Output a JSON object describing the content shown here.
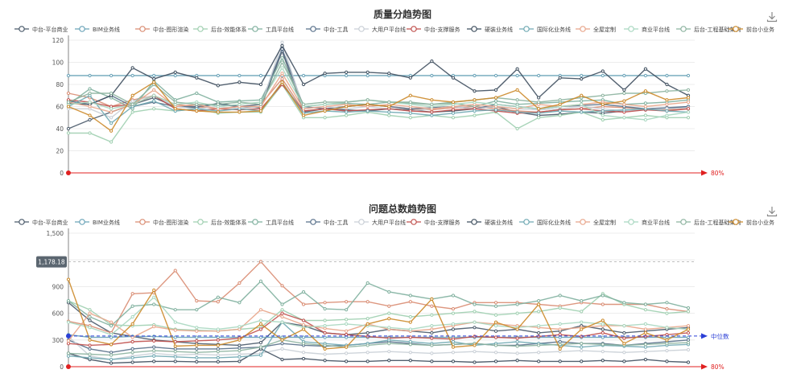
{
  "series_names": [
    "中台-平台商业",
    "BIM业务线",
    "中台-图形渲染",
    "后台-效能体系",
    "工具平台线",
    "中台-工具",
    "大用户平台线",
    "中台-支撑服务",
    "硬装业务线",
    "国际化业务线",
    "全屋定制",
    "商业平台线",
    "后台-工程基础架构",
    "前台小业务"
  ],
  "series_colors": [
    "#4a5a6a",
    "#6aa3b8",
    "#d98c72",
    "#9fcfb0",
    "#7fb09e",
    "#58708a",
    "#c9cfd6",
    "#c0504d",
    "#3f4f5f",
    "#6fa9b3",
    "#e8a58a",
    "#a8d7c0",
    "#8cb39f",
    "#cc8a2a"
  ],
  "icons": {
    "download": "download-icon"
  },
  "chart_data": [
    {
      "type": "line",
      "title": "质量分趋势图",
      "ylim": [
        0,
        120
      ],
      "yticks": [
        "0",
        "20",
        "40",
        "60",
        "80",
        "100",
        "120"
      ],
      "threshold_label": "80%",
      "x_count": 30,
      "series": [
        {
          "name": "中台-平台商业",
          "values": [
            40,
            48,
            55,
            62,
            68,
            60,
            59,
            63,
            60,
            59,
            110,
            55,
            58,
            57,
            56,
            58,
            57,
            55,
            56,
            58,
            60,
            55,
            52,
            53,
            55,
            54,
            56,
            57,
            58,
            60
          ]
        },
        {
          "name": "BIM业务线",
          "values": [
            88,
            88,
            88,
            88,
            88,
            88,
            88,
            88,
            88,
            88,
            88,
            88,
            88,
            88,
            88,
            88,
            88,
            88,
            88,
            88,
            88,
            88,
            88,
            88,
            88,
            88,
            88,
            88,
            88,
            88
          ]
        },
        {
          "name": "中台-图形渲染",
          "values": [
            72,
            68,
            60,
            66,
            70,
            62,
            60,
            58,
            60,
            62,
            85,
            56,
            58,
            60,
            62,
            60,
            58,
            57,
            59,
            60,
            58,
            56,
            55,
            57,
            58,
            60,
            59,
            58,
            57,
            58
          ]
        },
        {
          "name": "后台-效能体系",
          "values": [
            36,
            36,
            28,
            55,
            58,
            56,
            58,
            54,
            55,
            55,
            80,
            50,
            50,
            52,
            55,
            52,
            50,
            52,
            50,
            52,
            55,
            40,
            50,
            52,
            55,
            48,
            50,
            52,
            50,
            50
          ]
        },
        {
          "name": "工具平台线",
          "values": [
            62,
            76,
            68,
            58,
            83,
            66,
            72,
            64,
            65,
            66,
            104,
            60,
            62,
            63,
            62,
            64,
            63,
            62,
            63,
            60,
            65,
            62,
            63,
            64,
            65,
            66,
            62,
            63,
            64,
            66
          ]
        },
        {
          "name": "中台-工具",
          "values": [
            65,
            62,
            70,
            60,
            64,
            60,
            60,
            62,
            60,
            62,
            112,
            60,
            58,
            60,
            62,
            60,
            58,
            59,
            60,
            58,
            62,
            60,
            58,
            60,
            61,
            62,
            60,
            58,
            59,
            60
          ]
        },
        {
          "name": "大用户平台线",
          "values": [
            58,
            58,
            50,
            65,
            70,
            60,
            58,
            60,
            58,
            60,
            118,
            58,
            60,
            58,
            60,
            58,
            56,
            58,
            60,
            58,
            60,
            58,
            57,
            58,
            60,
            58,
            56,
            57,
            58,
            59
          ]
        },
        {
          "name": "中台-支撑服务",
          "values": [
            66,
            64,
            60,
            62,
            70,
            58,
            56,
            58,
            57,
            58,
            80,
            56,
            58,
            56,
            57,
            58,
            56,
            55,
            57,
            58,
            56,
            54,
            55,
            57,
            58,
            56,
            55,
            57,
            56,
            58
          ]
        },
        {
          "name": "硬装业务线",
          "values": [
            63,
            62,
            70,
            95,
            85,
            91,
            86,
            79,
            82,
            80,
            115,
            80,
            90,
            91,
            91,
            90,
            86,
            101,
            86,
            74,
            75,
            94,
            68,
            86,
            85,
            92,
            75,
            94,
            80,
            70
          ]
        },
        {
          "name": "国际化业务线",
          "values": [
            60,
            70,
            45,
            60,
            65,
            56,
            58,
            56,
            58,
            56,
            82,
            54,
            56,
            55,
            56,
            55,
            54,
            52,
            54,
            56,
            57,
            55,
            54,
            56,
            55,
            56,
            57,
            58,
            56,
            55
          ]
        },
        {
          "name": "全屋定制",
          "values": [
            64,
            60,
            55,
            62,
            75,
            60,
            62,
            58,
            60,
            60,
            90,
            58,
            60,
            62,
            60,
            62,
            60,
            58,
            60,
            62,
            60,
            58,
            62,
            60,
            62,
            64,
            62,
            60,
            62,
            64
          ]
        },
        {
          "name": "商业平台线",
          "values": [
            62,
            64,
            58,
            62,
            70,
            62,
            64,
            60,
            62,
            64,
            95,
            60,
            62,
            64,
            66,
            64,
            62,
            60,
            62,
            64,
            62,
            60,
            58,
            60,
            62,
            52,
            50,
            48,
            52,
            55
          ]
        },
        {
          "name": "后台-工程基础架构",
          "values": [
            64,
            72,
            72,
            62,
            80,
            64,
            62,
            62,
            64,
            62,
            100,
            62,
            64,
            64,
            66,
            64,
            64,
            62,
            64,
            66,
            68,
            66,
            64,
            66,
            68,
            70,
            72,
            72,
            74,
            75
          ]
        },
        {
          "name": "前台小业务",
          "values": [
            60,
            52,
            38,
            70,
            82,
            58,
            56,
            55,
            55,
            56,
            82,
            52,
            56,
            60,
            62,
            60,
            70,
            66,
            64,
            66,
            68,
            75,
            58,
            62,
            70,
            62,
            65,
            74,
            66,
            68
          ]
        }
      ]
    },
    {
      "type": "line",
      "title": "问题总数趋势图",
      "ylim": [
        0,
        1500
      ],
      "yticks": [
        "0",
        "300",
        "600",
        "900",
        "1,200",
        "1,500"
      ],
      "max_marker_label": "1,178.18",
      "max_marker_value": 1178.18,
      "median_label": "中位数",
      "median_value": 345,
      "threshold_label": "80%",
      "x_count": 30,
      "series": [
        {
          "name": "中台-平台商业",
          "values": [
            720,
            520,
            380,
            340,
            300,
            280,
            260,
            250,
            240,
            270,
            500,
            460,
            380,
            360,
            380,
            420,
            400,
            380,
            420,
            440,
            400,
            420,
            380,
            400,
            460,
            420,
            380,
            400,
            420,
            440
          ]
        },
        {
          "name": "BIM业务线",
          "values": [
            360,
            330,
            330,
            340,
            340,
            330,
            330,
            330,
            330,
            330,
            330,
            330,
            330,
            330,
            330,
            330,
            330,
            330,
            330,
            330,
            330,
            330,
            330,
            330,
            330,
            330,
            330,
            330,
            330,
            330
          ]
        },
        {
          "name": "中台-图形渲染",
          "values": [
            510,
            460,
            380,
            820,
            830,
            1080,
            740,
            730,
            940,
            1180,
            910,
            700,
            720,
            730,
            730,
            680,
            730,
            680,
            650,
            720,
            720,
            720,
            700,
            680,
            720,
            700,
            700,
            700,
            650,
            620
          ]
        },
        {
          "name": "后台-效能体系",
          "values": [
            740,
            640,
            470,
            460,
            470,
            420,
            410,
            400,
            420,
            440,
            640,
            520,
            520,
            530,
            540,
            600,
            560,
            580,
            600,
            620,
            580,
            600,
            620,
            660,
            620,
            820,
            700,
            640,
            600,
            620
          ]
        },
        {
          "name": "工具平台线",
          "values": [
            740,
            560,
            460,
            680,
            700,
            640,
            640,
            780,
            720,
            960,
            700,
            840,
            650,
            640,
            940,
            840,
            800,
            760,
            800,
            700,
            680,
            700,
            740,
            800,
            740,
            800,
            720,
            700,
            720,
            660
          ]
        },
        {
          "name": "中台-工具",
          "values": [
            300,
            200,
            160,
            200,
            220,
            200,
            200,
            200,
            210,
            220,
            260,
            240,
            230,
            240,
            260,
            280,
            260,
            240,
            250,
            260,
            240,
            240,
            260,
            280,
            260,
            260,
            240,
            260,
            280,
            300
          ]
        },
        {
          "name": "大用户平台线",
          "values": [
            340,
            120,
            80,
            120,
            150,
            130,
            140,
            130,
            140,
            150,
            200,
            160,
            140,
            150,
            160,
            170,
            160,
            150,
            160,
            170,
            160,
            150,
            160,
            170,
            180,
            170,
            160,
            170,
            180,
            190
          ]
        },
        {
          "name": "中台-支撑服务",
          "values": [
            260,
            240,
            250,
            280,
            290,
            280,
            290,
            300,
            320,
            420,
            600,
            520,
            380,
            360,
            340,
            320,
            330,
            320,
            310,
            340,
            330,
            320,
            340,
            360,
            340,
            380,
            320,
            340,
            360,
            380
          ]
        },
        {
          "name": "硬装业务线",
          "values": [
            150,
            80,
            40,
            50,
            60,
            60,
            55,
            55,
            60,
            200,
            80,
            90,
            70,
            60,
            60,
            70,
            70,
            60,
            60,
            50,
            60,
            70,
            60,
            60,
            60,
            70,
            60,
            80,
            60,
            50
          ]
        },
        {
          "name": "国际化业务线",
          "values": [
            120,
            100,
            80,
            100,
            120,
            110,
            100,
            100,
            110,
            130,
            500,
            280,
            260,
            240,
            260,
            300,
            280,
            260,
            280,
            240,
            260,
            280,
            260,
            240,
            220,
            240,
            230,
            220,
            240,
            250
          ]
        },
        {
          "name": "全屋定制",
          "values": [
            290,
            600,
            500,
            330,
            450,
            410,
            400,
            400,
            420,
            640,
            560,
            470,
            430,
            400,
            480,
            420,
            400,
            420,
            460,
            500,
            480,
            460,
            440,
            420,
            440,
            460,
            460,
            420,
            440,
            460
          ]
        },
        {
          "name": "商业平台线",
          "values": [
            500,
            440,
            360,
            560,
            780,
            500,
            440,
            420,
            450,
            520,
            500,
            440,
            460,
            480,
            460,
            440,
            420,
            460,
            480,
            500,
            460,
            440,
            460,
            480,
            500,
            480,
            460,
            480,
            440,
            420
          ]
        },
        {
          "name": "后台-工程基础架构",
          "values": [
            150,
            140,
            130,
            160,
            180,
            170,
            160,
            170,
            180,
            220,
            300,
            260,
            240,
            220,
            240,
            260,
            250,
            240,
            250,
            260,
            240,
            230,
            240,
            250,
            260,
            250,
            240,
            250,
            260,
            270
          ]
        },
        {
          "name": "前台小业务",
          "values": [
            980,
            300,
            250,
            480,
            860,
            230,
            240,
            240,
            300,
            480,
            300,
            420,
            200,
            220,
            480,
            540,
            500,
            760,
            220,
            240,
            500,
            420,
            700,
            200,
            420,
            520,
            260,
            380,
            300,
            420
          ]
        }
      ]
    }
  ]
}
